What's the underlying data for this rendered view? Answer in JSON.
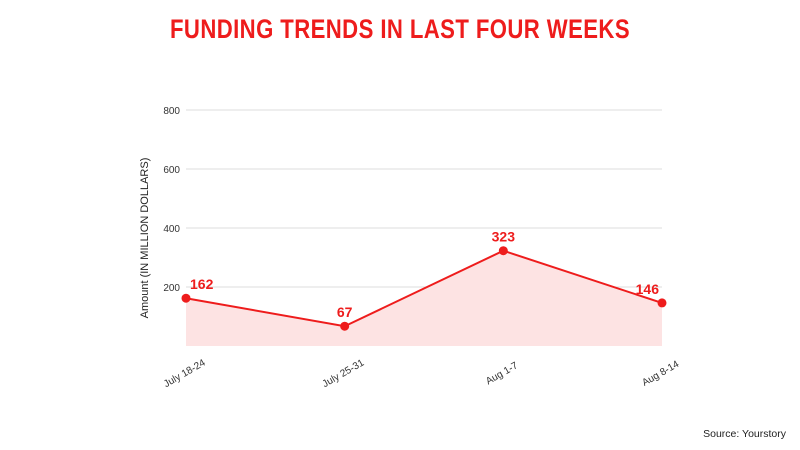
{
  "title": "FUNDING TRENDS IN LAST FOUR WEEKS",
  "source": "Source: Yourstory",
  "colors": {
    "title": "#ee1c1c",
    "line": "#ee1c1c",
    "fill": "#fde3e3",
    "grid": "#dcdcdc",
    "tick": "#333333",
    "label": "#ee1c1c"
  },
  "chart_data": {
    "type": "area",
    "title": "FUNDING TRENDS IN LAST FOUR WEEKS",
    "xlabel": "",
    "ylabel": "Amount (IN MILLION DOLLARS)",
    "categories": [
      "July 18-24",
      "July 25-31",
      "Aug 1-7",
      "Aug 8-14"
    ],
    "values": [
      162,
      67,
      323,
      146
    ],
    "value_labels": [
      "162",
      "67",
      "323",
      "146"
    ],
    "yticks": [
      200,
      400,
      600,
      800
    ],
    "ytick_labels": [
      "200",
      "400",
      "600",
      "800"
    ],
    "ylim": [
      0,
      800
    ],
    "grid": true,
    "legend": "none"
  }
}
